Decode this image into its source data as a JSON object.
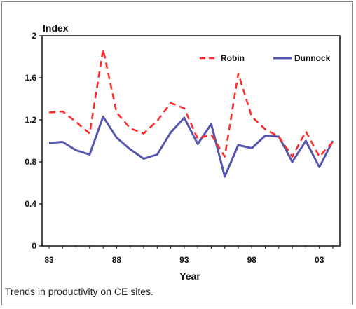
{
  "caption": "Trends in productivity on CE sites.",
  "chart_data": {
    "type": "line",
    "title": "",
    "xlabel": "Year",
    "ylabel": "Index",
    "x": [
      1983,
      1984,
      1985,
      1986,
      1987,
      1988,
      1989,
      1990,
      1991,
      1992,
      1993,
      1994,
      1995,
      1996,
      1997,
      1998,
      1999,
      2000,
      2001,
      2002,
      2003,
      2004
    ],
    "xlim": [
      1983,
      2004
    ],
    "ylim": [
      0,
      2
    ],
    "xticks": [
      {
        "value": 1983,
        "label": "83"
      },
      {
        "value": 1988,
        "label": "88"
      },
      {
        "value": 1993,
        "label": "93"
      },
      {
        "value": 1998,
        "label": "98"
      },
      {
        "value": 2003,
        "label": "03"
      }
    ],
    "yticks": [
      {
        "value": 0,
        "label": "0"
      },
      {
        "value": 0.4,
        "label": "0.4"
      },
      {
        "value": 0.8,
        "label": "0.8"
      },
      {
        "value": 1.2,
        "label": "1.2"
      },
      {
        "value": 1.6,
        "label": "1.6"
      },
      {
        "value": 2.0,
        "label": "2"
      }
    ],
    "grid": false,
    "legend_position": "top-right",
    "series": [
      {
        "name": "Robin",
        "color": "#ff2a2a",
        "dash": "dashed",
        "values": [
          1.27,
          1.28,
          1.18,
          1.07,
          1.87,
          1.27,
          1.12,
          1.07,
          1.19,
          1.36,
          1.31,
          1.02,
          1.06,
          0.85,
          1.64,
          1.23,
          1.11,
          1.04,
          0.85,
          1.09,
          0.85,
          0.99
        ]
      },
      {
        "name": "Dunnock",
        "color": "#5556b0",
        "dash": "solid",
        "values": [
          0.98,
          0.99,
          0.91,
          0.87,
          1.23,
          1.03,
          0.92,
          0.83,
          0.87,
          1.08,
          1.22,
          0.97,
          1.16,
          0.66,
          0.96,
          0.93,
          1.05,
          1.04,
          0.8,
          1.0,
          0.75,
          1.0
        ]
      }
    ]
  }
}
